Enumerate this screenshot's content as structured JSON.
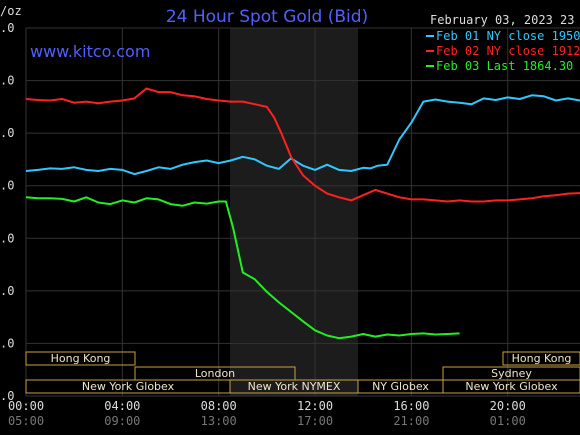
{
  "chart_data": {
    "type": "line",
    "title": "24 Hour Spot Gold (Bid)",
    "watermark": "www.kitco.com",
    "y_unit": "/oz",
    "date_label": "February 03, 2023 23",
    "y_tick_labels": [
      ".0",
      ".0",
      ".0",
      ".0",
      ".0",
      ".0",
      ".0",
      ".0"
    ],
    "x_tick_labels_top": [
      "00:00",
      "04:00",
      "08:00",
      "12:00",
      "16:00",
      "20:00"
    ],
    "x_tick_labels_bottom": [
      "05:00",
      "09:00",
      "13:00",
      "17:00",
      "21:00",
      "01:00"
    ],
    "x_unit": "hours",
    "xlim": [
      0,
      23
    ],
    "ylim": [
      0,
      7
    ],
    "legend": [
      {
        "text": "Feb 01 NY close 1950",
        "color": "#2ec8ff"
      },
      {
        "text": "Feb 02 NY close 1912",
        "color": "#ff2020"
      },
      {
        "text": "Feb 03 Last 1864.30",
        "color": "#22ee22"
      }
    ],
    "colors": {
      "title": "#5060ff",
      "watermark": "#5060ff",
      "axis_text": "#dddddd",
      "axis_text_dim": "#777777",
      "session_box": "#c8a040",
      "session_text": "#f0e6c8"
    },
    "sessions_row1": [
      "Hong Kong",
      "Hong Kong"
    ],
    "sessions_row2": [
      "London",
      "Sydney"
    ],
    "sessions_row3": [
      "New York Globex",
      "New York NYMEX",
      "NY Globex",
      "New York Globex"
    ],
    "series": [
      {
        "name": "Feb 01 NY close 1950",
        "color": "#2ec8ff",
        "x": [
          0,
          0.5,
          1,
          1.5,
          2,
          2.5,
          3,
          3.5,
          4,
          4.5,
          5,
          5.5,
          6,
          6.5,
          7,
          7.5,
          8,
          8.5,
          9,
          9.5,
          10,
          10.5,
          11,
          11.5,
          12,
          12.5,
          13,
          13.5,
          14,
          14.3,
          14.6,
          15,
          15.5,
          16,
          16.5,
          17,
          17.5,
          18,
          18.5,
          19,
          19.5,
          20,
          20.5,
          21,
          21.5,
          22,
          22.5,
          23
        ],
        "y": [
          4.28,
          4.3,
          4.33,
          4.32,
          4.35,
          4.3,
          4.28,
          4.32,
          4.3,
          4.22,
          4.28,
          4.35,
          4.32,
          4.4,
          4.45,
          4.48,
          4.43,
          4.48,
          4.55,
          4.5,
          4.38,
          4.32,
          4.52,
          4.38,
          4.3,
          4.4,
          4.3,
          4.28,
          4.34,
          4.33,
          4.38,
          4.4,
          4.88,
          5.2,
          5.6,
          5.64,
          5.6,
          5.58,
          5.55,
          5.66,
          5.63,
          5.68,
          5.65,
          5.72,
          5.7,
          5.62,
          5.66,
          5.62
        ]
      },
      {
        "name": "Feb 02 NY close 1912",
        "color": "#ff2020",
        "x": [
          0,
          0.5,
          1,
          1.5,
          2,
          2.5,
          3,
          3.5,
          4,
          4.5,
          5,
          5.5,
          6,
          6.5,
          7,
          7.5,
          8,
          8.5,
          9,
          9.5,
          10,
          10.3,
          10.6,
          11,
          11.5,
          12,
          12.5,
          13,
          13.5,
          14,
          14.5,
          15,
          15.5,
          16,
          16.5,
          17,
          17.5,
          18,
          18.5,
          19,
          19.5,
          20,
          20.5,
          21,
          21.5,
          22,
          22.5,
          23
        ],
        "y": [
          5.65,
          5.63,
          5.62,
          5.65,
          5.58,
          5.6,
          5.57,
          5.6,
          5.62,
          5.66,
          5.85,
          5.78,
          5.78,
          5.72,
          5.7,
          5.65,
          5.62,
          5.6,
          5.6,
          5.55,
          5.5,
          5.3,
          5.0,
          4.55,
          4.2,
          4.0,
          3.85,
          3.78,
          3.72,
          3.82,
          3.92,
          3.85,
          3.78,
          3.74,
          3.74,
          3.72,
          3.7,
          3.72,
          3.7,
          3.7,
          3.72,
          3.72,
          3.74,
          3.76,
          3.8,
          3.82,
          3.85,
          3.86
        ]
      },
      {
        "name": "Feb 03 Last 1864.30",
        "color": "#22ee22",
        "x": [
          0,
          0.5,
          1,
          1.5,
          2,
          2.5,
          3,
          3.5,
          4,
          4.5,
          5,
          5.5,
          6,
          6.5,
          7,
          7.5,
          8,
          8.3,
          8.6,
          9,
          9.5,
          10,
          10.5,
          11,
          11.5,
          12,
          12.5,
          13,
          13.5,
          14,
          14.5,
          15,
          15.5,
          16,
          16.5,
          17,
          17.5,
          18
        ],
        "y": [
          3.78,
          3.76,
          3.76,
          3.75,
          3.7,
          3.78,
          3.68,
          3.65,
          3.72,
          3.68,
          3.76,
          3.74,
          3.65,
          3.62,
          3.68,
          3.66,
          3.7,
          3.7,
          3.2,
          2.35,
          2.22,
          1.98,
          1.78,
          1.6,
          1.42,
          1.25,
          1.15,
          1.1,
          1.13,
          1.18,
          1.13,
          1.17,
          1.15,
          1.18,
          1.19,
          1.17,
          1.18,
          1.19
        ]
      }
    ]
  }
}
